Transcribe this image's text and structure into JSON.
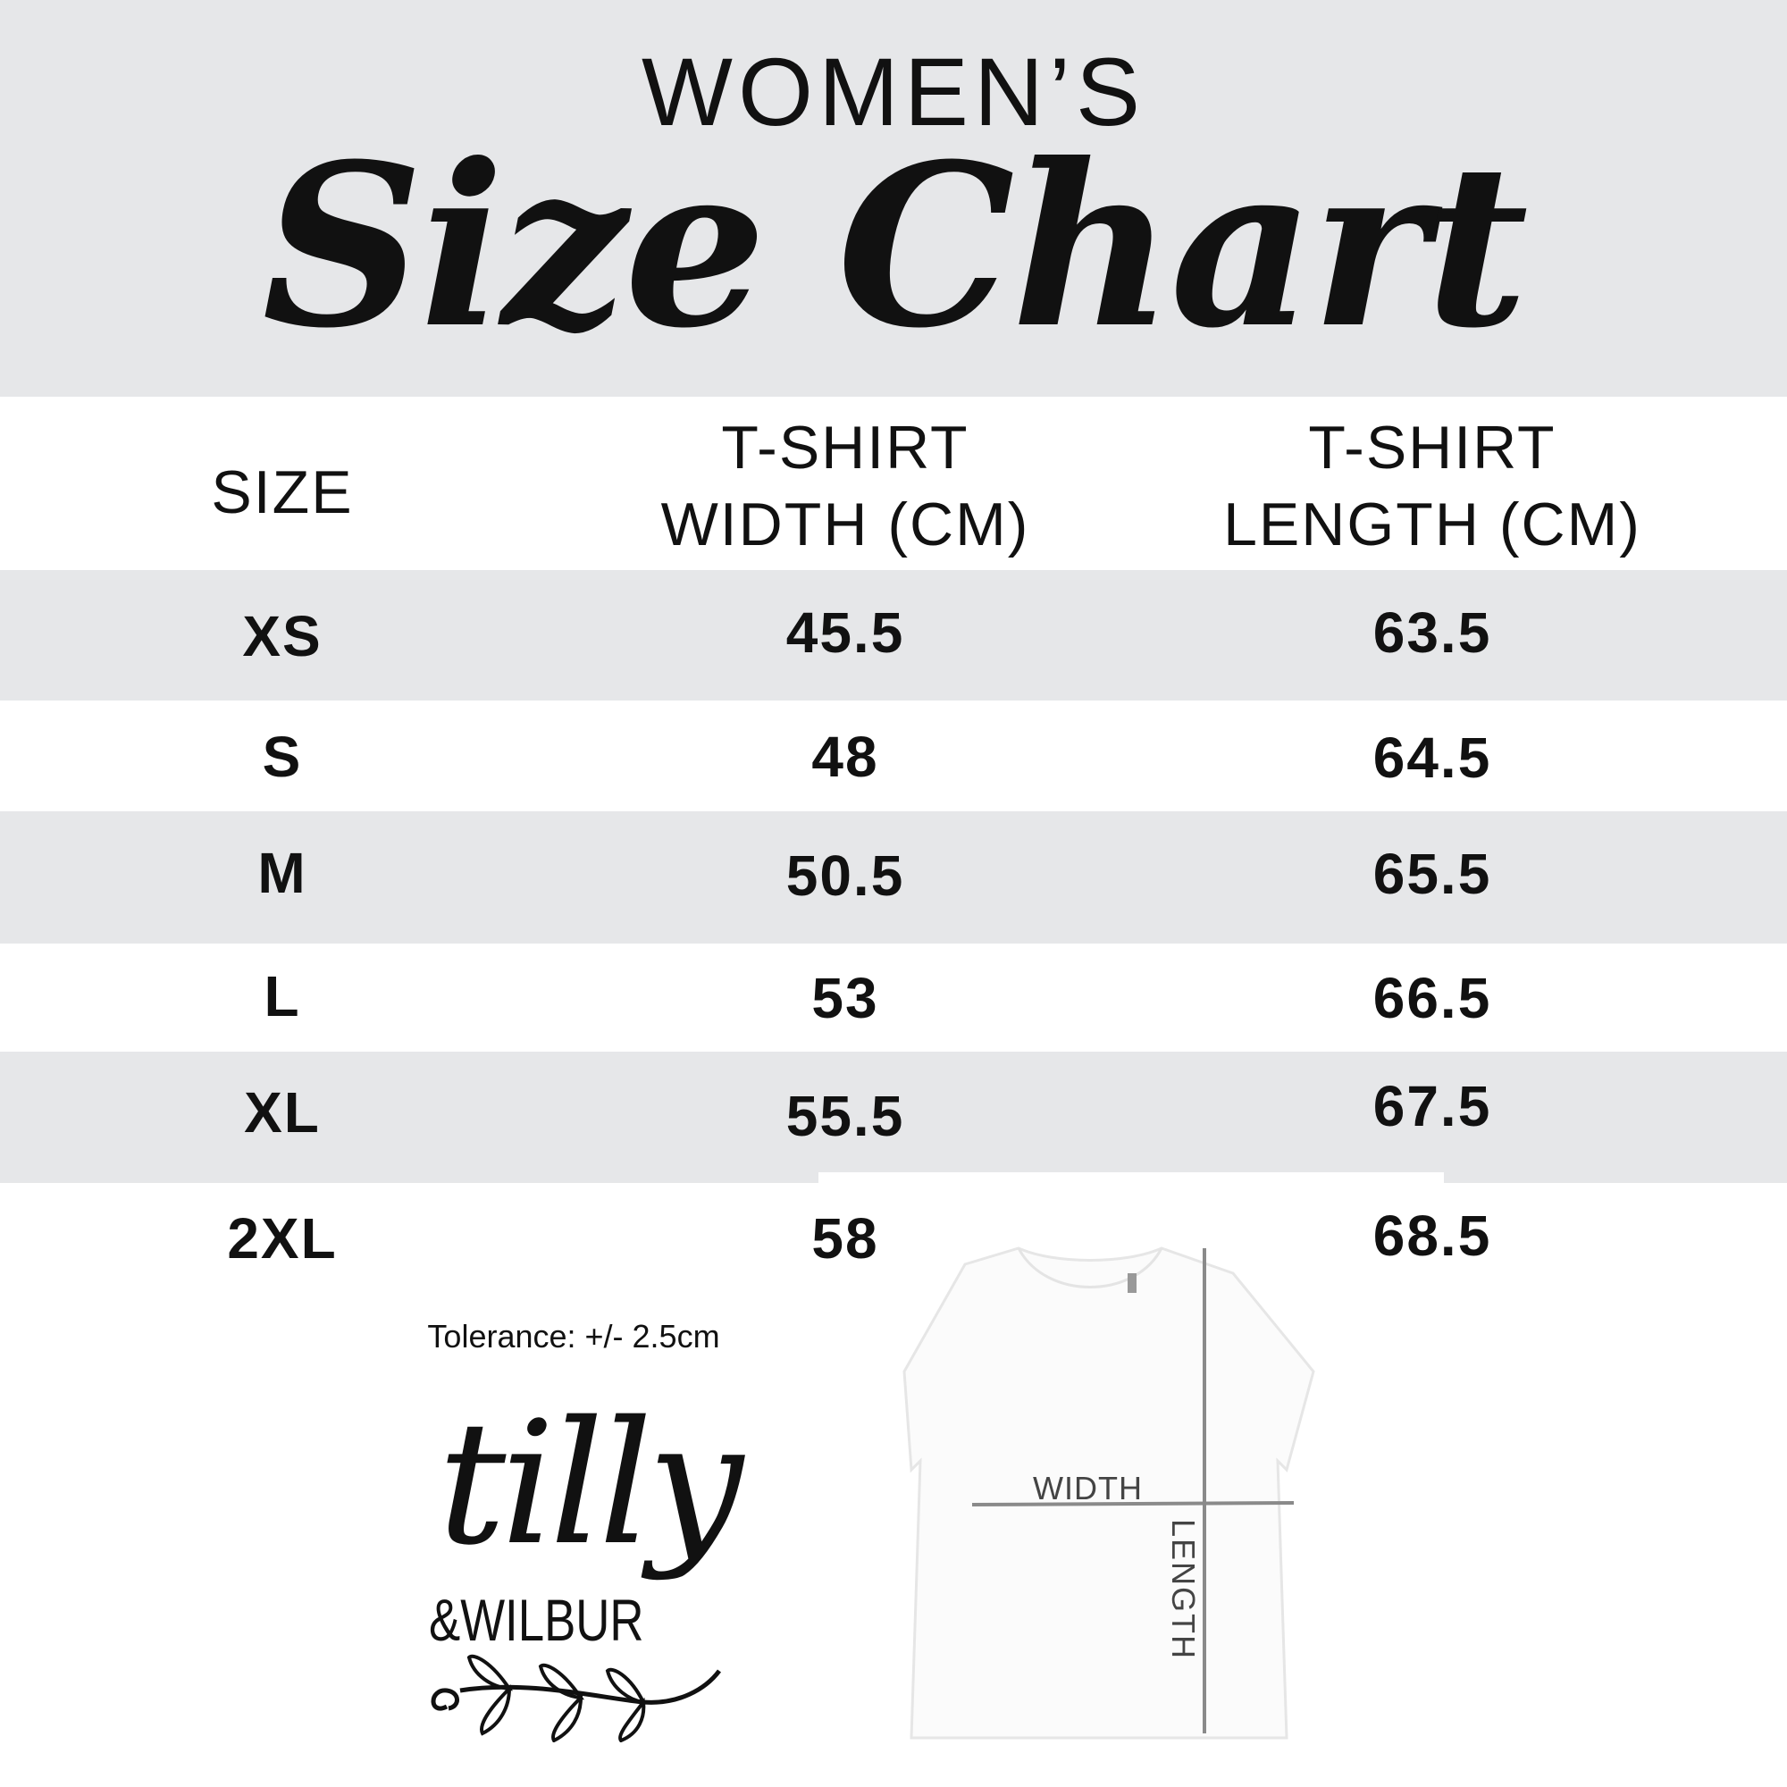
{
  "header": {
    "title_top": "WOMEN’S",
    "title_script": "Size Chart"
  },
  "table": {
    "columns": [
      "SIZE",
      "T-SHIRT WIDTH (CM)",
      "T-SHIRT LENGTH (CM)"
    ],
    "column_lines": [
      [
        "SIZE"
      ],
      [
        "T-SHIRT",
        "WIDTH (CM)"
      ],
      [
        "T-SHIRT",
        "LENGTH (CM)"
      ]
    ],
    "rows": [
      {
        "size": "XS",
        "width": "45.5",
        "length": "63.5"
      },
      {
        "size": "S",
        "width": "48",
        "length": "64.5"
      },
      {
        "size": "M",
        "width": "50.5",
        "length": "65.5"
      },
      {
        "size": "L",
        "width": "53",
        "length": "66.5"
      },
      {
        "size": "XL",
        "width": "55.5",
        "length": "67.5"
      },
      {
        "size": "2XL",
        "width": "58",
        "length": "68.5"
      }
    ]
  },
  "tolerance": "Tolerance: +/- 2.5cm",
  "diagram": {
    "width_label": "WIDTH",
    "length_label": "LENGTH"
  },
  "logo": {
    "line1": "tilly",
    "line2": "&WILBUR"
  },
  "colors": {
    "band": "#e6e7e9",
    "measure_line": "#8a8a8a"
  }
}
